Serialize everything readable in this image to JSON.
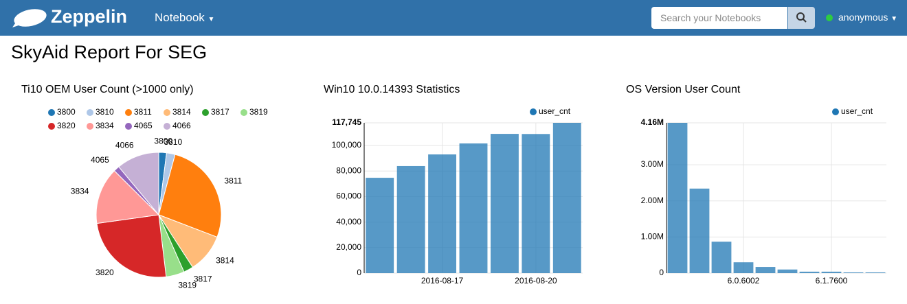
{
  "navbar": {
    "brand": "Zeppelin",
    "menu": "Notebook",
    "search_placeholder": "Search your Notebooks",
    "user": "anonymous"
  },
  "page_title": "SkyAid Report For SEG",
  "chart_data": [
    {
      "type": "pie",
      "title": "Ti10 OEM User Count (>1000 only)",
      "categories": [
        "3800",
        "3810",
        "3811",
        "3814",
        "3817",
        "3819",
        "3820",
        "3834",
        "4065",
        "4066"
      ],
      "values": [
        2,
        2.2,
        26.5,
        10,
        2.5,
        4.7,
        24.6,
        14.6,
        1.5,
        11
      ],
      "colors": [
        "#1f77b4",
        "#aec7e8",
        "#ff7f0e",
        "#ffbb78",
        "#2ca02c",
        "#98df8a",
        "#d62728",
        "#ff9896",
        "#9467bd",
        "#c5b0d5"
      ]
    },
    {
      "type": "bar",
      "title": "Win10 10.0.14393 Statistics",
      "categories": [
        null,
        null,
        "2016-08-17",
        null,
        null,
        "2016-08-20",
        null
      ],
      "series": [
        {
          "name": "user_cnt",
          "color": "#1f77b4",
          "values": [
            74700,
            83900,
            93000,
            101600,
            109100,
            109000,
            117745
          ]
        }
      ],
      "ylim": [
        0,
        117745
      ],
      "yticks": [
        0,
        {
          "value": 20000,
          "label": "20,000"
        },
        {
          "value": 40000,
          "label": "40,000"
        },
        {
          "value": 60000,
          "label": "60,000"
        },
        {
          "value": 80000,
          "label": "80,000"
        },
        {
          "value": 100000,
          "label": "100,000"
        },
        {
          "value": 117745,
          "label": "117,745"
        }
      ],
      "grid": true
    },
    {
      "type": "bar",
      "title": "OS Version User Count",
      "categories": [
        null,
        null,
        null,
        "6.0.6002",
        null,
        null,
        null,
        "6.1.7600",
        null,
        null
      ],
      "series": [
        {
          "name": "user_cnt",
          "color": "#1f77b4",
          "values": [
            4160000,
            2340000,
            870000,
            300000,
            170000,
            100000,
            40000,
            40000,
            20000,
            20000
          ]
        }
      ],
      "ylim": [
        0,
        4160000
      ],
      "yticks": [
        0,
        {
          "value": 1000000,
          "label": "1.00M"
        },
        {
          "value": 2000000,
          "label": "2.00M"
        },
        {
          "value": 3000000,
          "label": "3.00M"
        },
        {
          "value": 4160000,
          "label": "4.16M"
        }
      ],
      "grid": true
    }
  ]
}
